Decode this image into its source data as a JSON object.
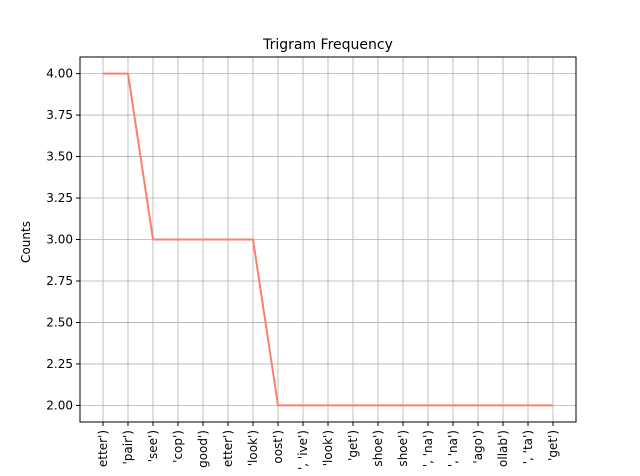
{
  "chart_data": {
    "type": "line",
    "title": "Trigram Frequency",
    "xlabel": "",
    "ylabel": "Counts",
    "ylim": [
      1.9,
      4.1
    ],
    "y_ticks": [
      "2.00",
      "2.25",
      "2.50",
      "2.75",
      "3.00",
      "3.25",
      "3.50",
      "3.75",
      "4.00"
    ],
    "grid": true,
    "line_color": "#fa8072",
    "categories": [
      "etter')",
      "'pair')",
      "'see')",
      "'cop')",
      "good')",
      "etter')",
      "'look')",
      "oost')",
      "', 'ive')",
      "'look')",
      "'get')",
      "shoe')",
      "shoe')",
      "', 'na')",
      "', 'na')",
      "'ago')",
      "ollab')",
      "', 'ta')",
      "'get')"
    ],
    "values": [
      4,
      4,
      3,
      3,
      3,
      3,
      3,
      2,
      2,
      2,
      2,
      2,
      2,
      2,
      2,
      2,
      2,
      2,
      2
    ]
  }
}
